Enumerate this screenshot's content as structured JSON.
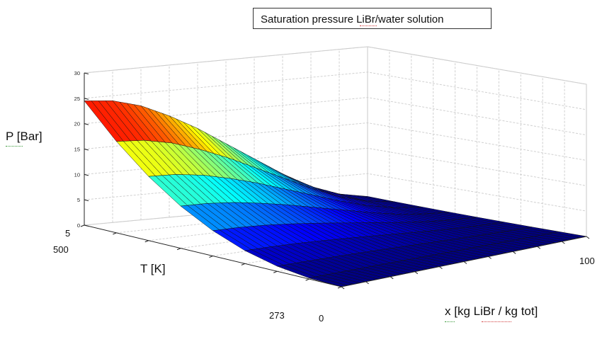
{
  "chart_data": {
    "type": "surface",
    "title": "Saturation pressure LiBr/water solution",
    "zlabel": "P  [Bar]",
    "ylabel": "T [K]",
    "xlabel": "x [kg LiBr / kg tot]",
    "zlim": [
      0,
      30
    ],
    "z_ticks": [
      "0",
      "5",
      "10",
      "15",
      "20",
      "25",
      "30"
    ],
    "x_tick_labels": [
      "0",
      "100"
    ],
    "y_tick_labels": [
      "273",
      "500",
      "5"
    ],
    "colormap": "jet",
    "grid": true,
    "series": [
      {
        "values": [
          [
            0.0,
            0.1,
            0.2,
            0.3,
            0.4,
            0.5,
            0.6,
            0.7,
            0.8,
            0.9,
            1.0
          ],
          [
            24.5,
            24.0,
            22.5,
            20.0,
            17.0,
            13.5,
            10.0,
            6.5,
            3.5,
            1.5,
            0.5
          ]
        ]
      }
    ]
  }
}
